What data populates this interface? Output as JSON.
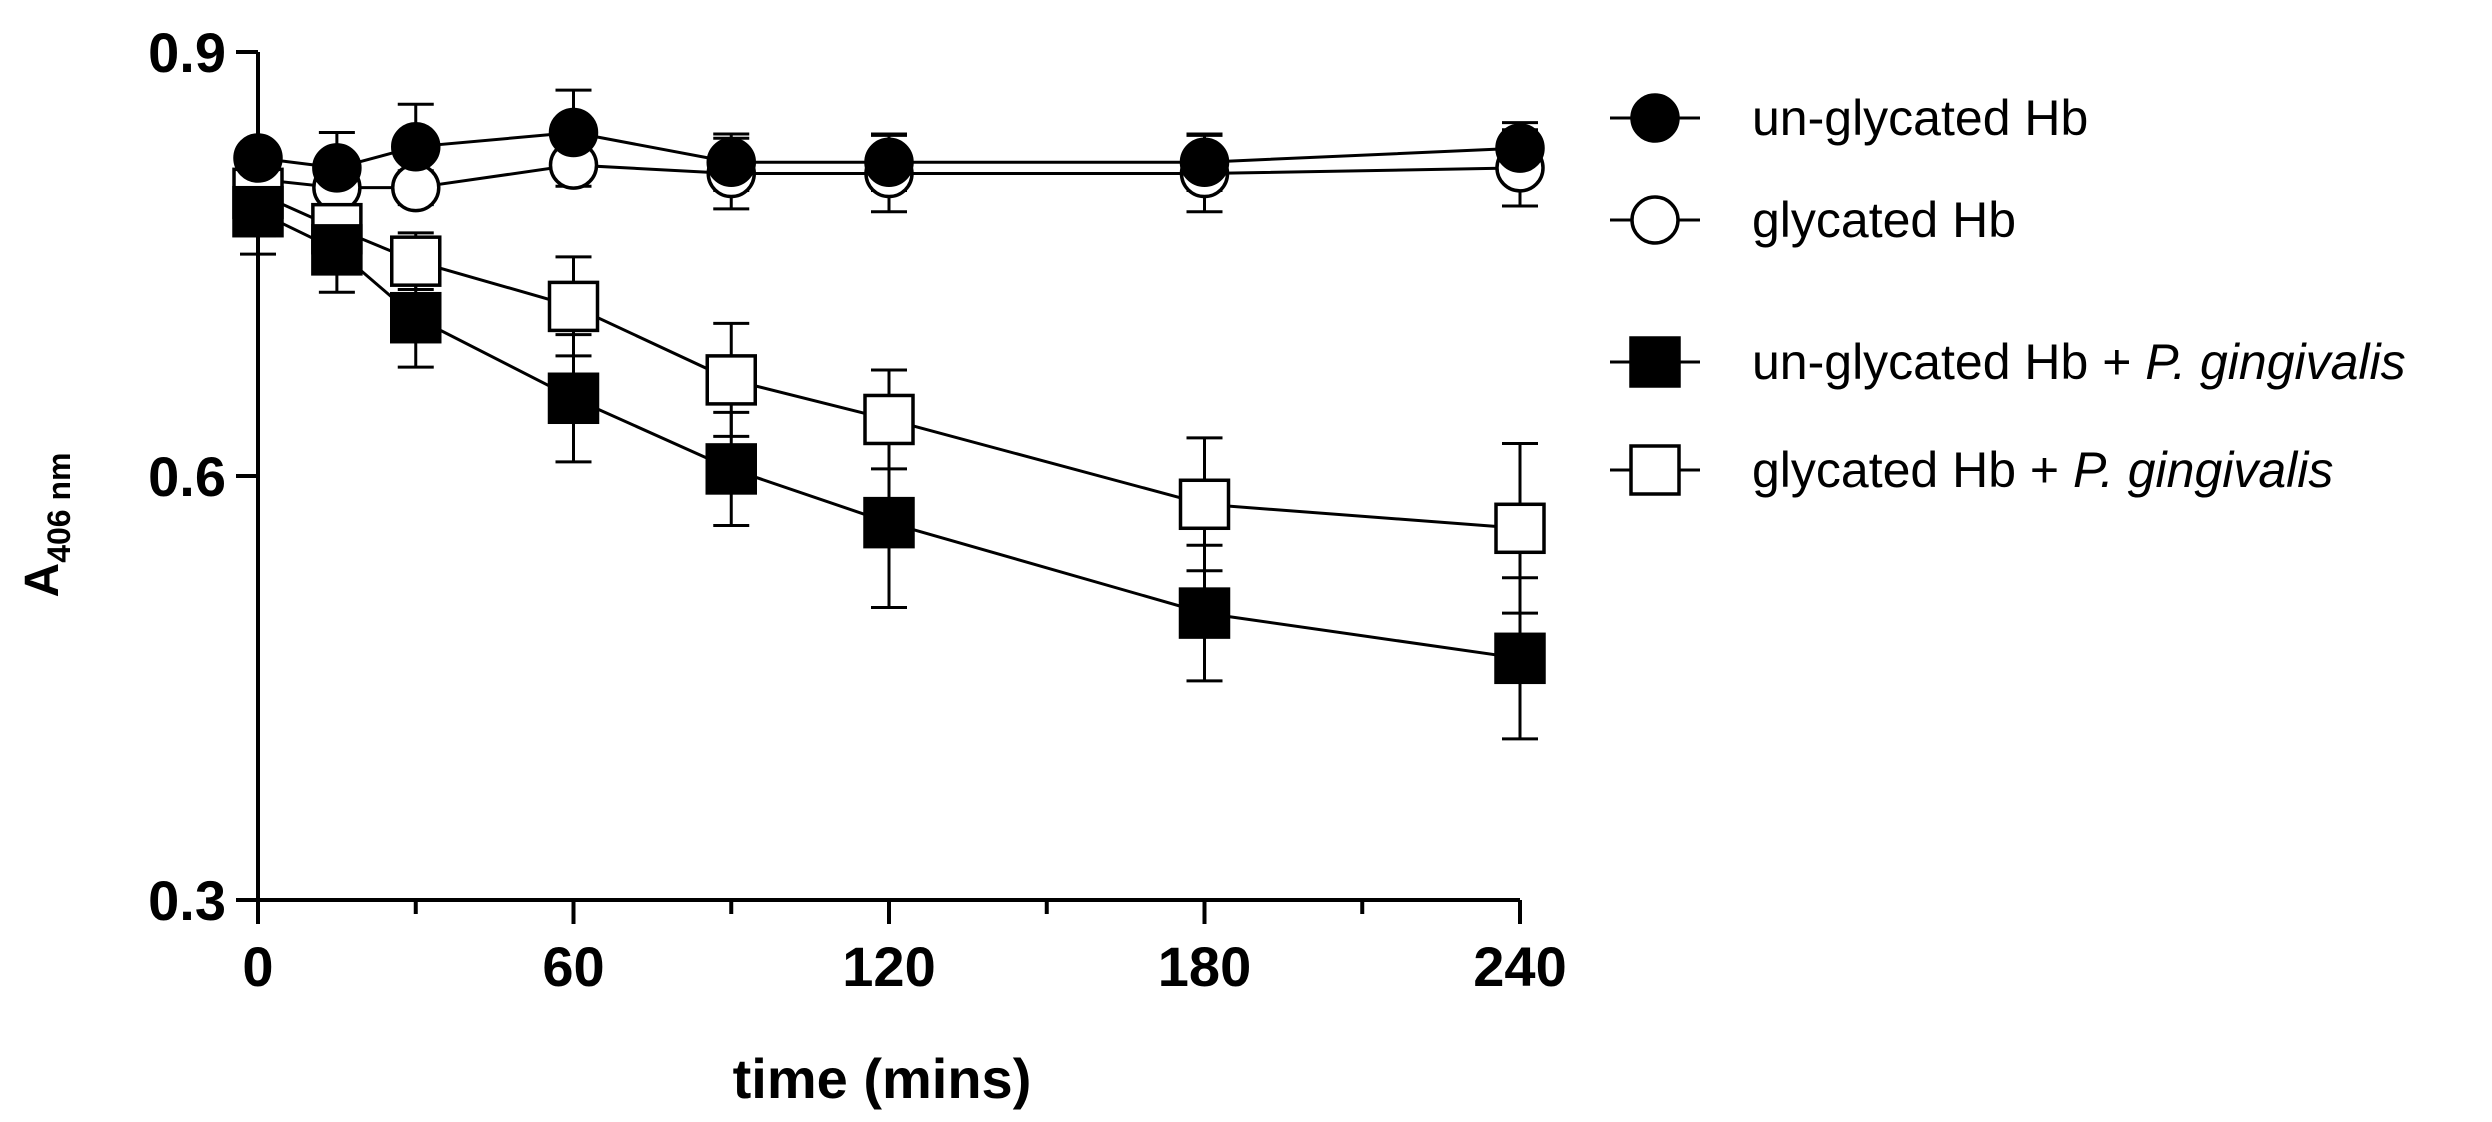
{
  "chart_data": {
    "type": "line",
    "title": "",
    "xlabel": "time (mins)",
    "ylabel": {
      "main": "A",
      "sub": "406 nm"
    },
    "xlim": [
      0,
      240
    ],
    "ylim": [
      0.3,
      0.9
    ],
    "x_ticks": [
      0,
      60,
      120,
      180,
      240
    ],
    "x_tick_labels": [
      "0",
      "60",
      "120",
      "180",
      "240"
    ],
    "x_minor_ticks": [
      30,
      90,
      150,
      210
    ],
    "y_ticks": [
      0.3,
      0.6,
      0.9
    ],
    "y_tick_labels": [
      "0.3",
      "0.6",
      "0.9"
    ],
    "grid": false,
    "legend_position": "right",
    "x": [
      0,
      15,
      30,
      60,
      90,
      120,
      180,
      240
    ],
    "series": [
      {
        "name": "un-glycated Hb",
        "label_plain": "un-glycated Hb",
        "label_italic": "",
        "marker": "circle",
        "filled": true,
        "values": [
          0.825,
          0.818,
          0.833,
          0.843,
          0.822,
          0.822,
          0.822,
          0.832
        ],
        "errors": [
          0.008,
          0.025,
          0.03,
          0.03,
          0.02,
          0.02,
          0.02,
          0.018
        ]
      },
      {
        "name": "glycated Hb",
        "label_plain": "glycated Hb",
        "label_italic": "",
        "marker": "circle",
        "filled": false,
        "values": [
          0.81,
          0.804,
          0.804,
          0.82,
          0.814,
          0.814,
          0.814,
          0.818
        ],
        "errors": [
          0.01,
          0.012,
          0.012,
          0.015,
          0.025,
          0.027,
          0.027,
          0.027
        ]
      },
      {
        "name": "un-glycated Hb + P. gingivalis",
        "label_plain": "un-glycated Hb + ",
        "label_italic": "P. gingivalis",
        "marker": "square",
        "filled": true,
        "values": [
          0.787,
          0.76,
          0.712,
          0.655,
          0.605,
          0.567,
          0.503,
          0.471
        ],
        "errors": [
          0.03,
          0.03,
          0.035,
          0.045,
          0.04,
          0.06,
          0.048,
          0.057
        ]
      },
      {
        "name": "glycated Hb + P. gingivalis",
        "label_plain": "glycated Hb + ",
        "label_italic": "P. gingivalis",
        "marker": "square",
        "filled": false,
        "values": [
          0.8,
          0.775,
          0.752,
          0.72,
          0.668,
          0.64,
          0.58,
          0.563
        ],
        "errors": [
          0.03,
          0.02,
          0.02,
          0.035,
          0.04,
          0.035,
          0.047,
          0.06
        ]
      }
    ]
  }
}
